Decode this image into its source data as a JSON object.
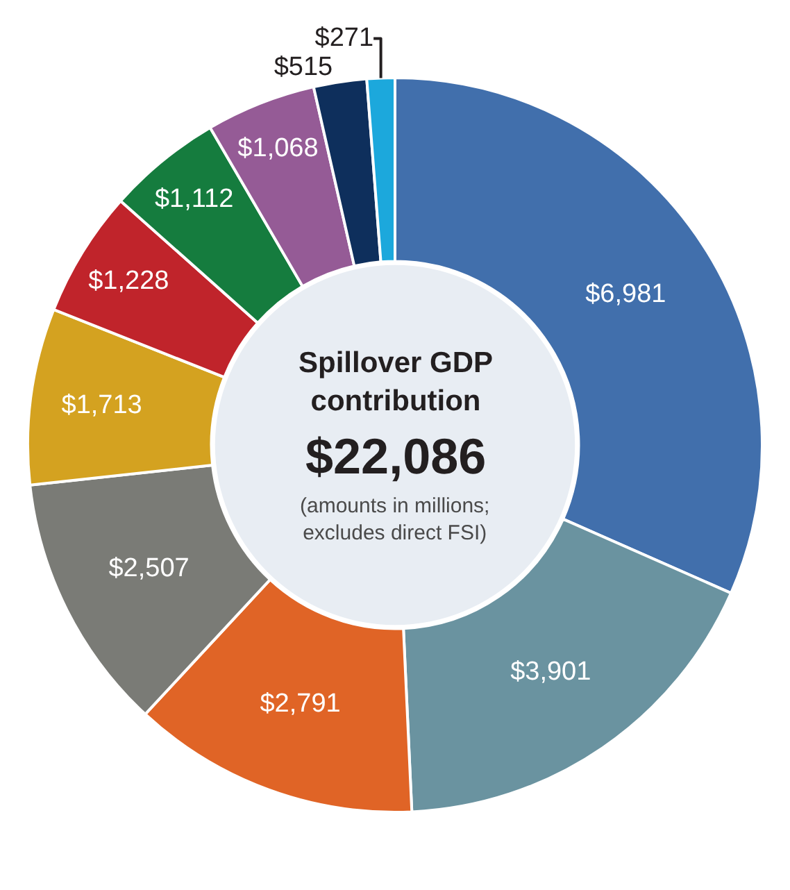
{
  "chart_data": {
    "type": "donut",
    "title": "Spillover GDP contribution",
    "subtitle": "$22,086",
    "annotations": [
      "(amounts in millions; excludes direct FSI)"
    ],
    "categories": [
      null,
      null,
      null,
      null,
      null,
      null,
      null,
      null,
      null,
      null
    ],
    "values": [
      6981,
      3901,
      2791,
      2507,
      1713,
      1228,
      1112,
      1068,
      515,
      271
    ],
    "value_labels": [
      "$6,981",
      "$3,901",
      "$2,791",
      "$2,507",
      "$1,713",
      "$1,228",
      "$1,112",
      "$1,068",
      "$515",
      "$271"
    ],
    "colors": [
      "#416fac",
      "#6a93a0",
      "#e06426",
      "#7a7b76",
      "#d4a220",
      "#c0242b",
      "#157c3e",
      "#955b96",
      "#0e2f5c",
      "#1ca8dc"
    ],
    "legend": false
  }
}
